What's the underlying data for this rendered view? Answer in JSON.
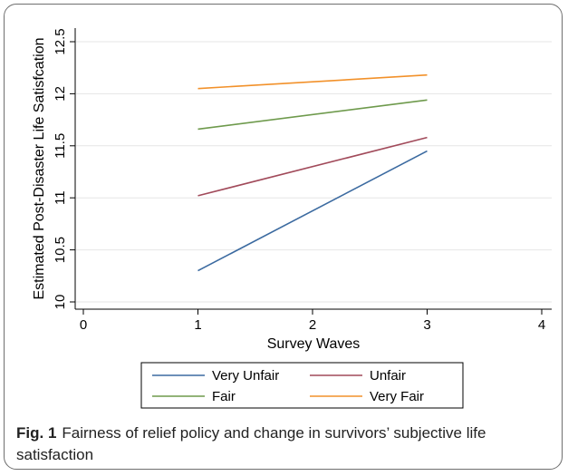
{
  "chart_data": {
    "type": "line",
    "xlabel": "Survey Waves",
    "ylabel": "Estimated Post-Disaster  Life Satisfcation",
    "xlim": [
      0,
      4
    ],
    "ylim": [
      10,
      12.5
    ],
    "xticks": [
      "0",
      "1",
      "2",
      "3",
      "4"
    ],
    "yticks": [
      "10",
      "10.5",
      "11",
      "11.5",
      "12",
      "12.5"
    ],
    "grid": "horizontal",
    "legend_position": "bottom",
    "series": [
      {
        "name": "Very Unfair",
        "color": "#3b6aa0",
        "x": [
          1,
          3
        ],
        "y": [
          10.3,
          11.45
        ]
      },
      {
        "name": "Unfair",
        "color": "#a14a5a",
        "x": [
          1,
          3
        ],
        "y": [
          11.02,
          11.58
        ]
      },
      {
        "name": "Fair",
        "color": "#6e9a4c",
        "x": [
          1,
          3
        ],
        "y": [
          11.66,
          11.94
        ]
      },
      {
        "name": "Very Fair",
        "color": "#f2912a",
        "x": [
          1,
          3
        ],
        "y": [
          12.05,
          12.18
        ]
      }
    ]
  },
  "caption": {
    "label": "Fig. 1",
    "text": "Fairness of relief policy and change in survivors’ subjective life satisfaction"
  }
}
